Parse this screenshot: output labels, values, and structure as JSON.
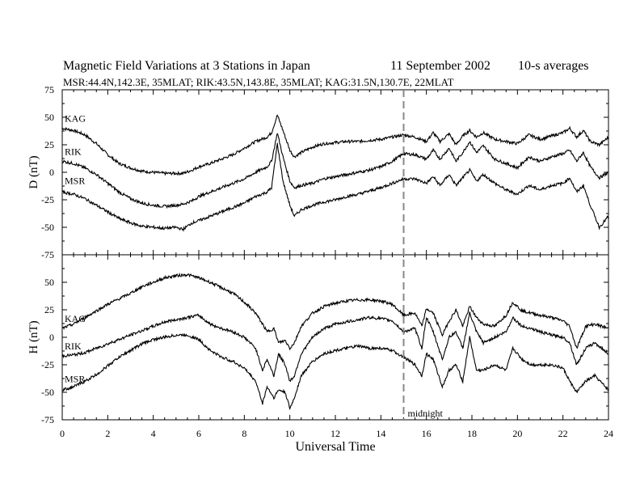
{
  "header": {
    "title": "Magnetic Field Variations at 3 Stations in Japan",
    "date": "11 September 2002",
    "averaging": "10-s averages",
    "stations_line": "MSR:44.4N,142.3E, 35MLAT;   RIK:43.5N,143.8E, 35MLAT;   KAG:31.5N,130.7E, 22MLAT"
  },
  "chart_data": {
    "type": "line",
    "xlabel": "Universal Time",
    "xlim": [
      0,
      24
    ],
    "xticks": [
      0,
      2,
      4,
      6,
      8,
      10,
      12,
      14,
      16,
      18,
      20,
      22,
      24
    ],
    "annotations": [
      {
        "x": 15,
        "style": "dashed-vertical",
        "label": "midnight"
      }
    ],
    "panels": [
      {
        "ylabel": "D (nT)",
        "ylim": [
          -75,
          75
        ],
        "yticks": [
          75,
          50,
          25,
          0,
          -25,
          -50,
          -75
        ],
        "series": [
          {
            "name": "KAG",
            "x": [
              0,
              0.5,
              1,
              1.5,
              2,
              2.5,
              3,
              3.5,
              4,
              4.5,
              5,
              5.3,
              5.7,
              6,
              6.5,
              7,
              7.5,
              8,
              8.5,
              9,
              9.2,
              9.45,
              9.7,
              10,
              10.2,
              10.5,
              11,
              11.5,
              12,
              12.5,
              13,
              13.5,
              14,
              14.5,
              15,
              15.5,
              16,
              16.3,
              16.6,
              17,
              17.3,
              17.6,
              17.9,
              18.2,
              18.5,
              19,
              19.5,
              20,
              20.5,
              21,
              21.5,
              22,
              22.3,
              22.6,
              22.9,
              23.2,
              23.6,
              24
            ],
            "values": [
              40,
              38,
              34,
              26,
              16,
              8,
              4,
              1,
              0,
              -1,
              -1,
              -1,
              2,
              5,
              8,
              12,
              16,
              22,
              28,
              32,
              36,
              52,
              38,
              20,
              14,
              18,
              23,
              26,
              27,
              28,
              28,
              29,
              30,
              32,
              34,
              32,
              28,
              36,
              28,
              35,
              25,
              33,
              38,
              32,
              36,
              30,
              28,
              26,
              34,
              30,
              33,
              36,
              40,
              32,
              38,
              28,
              25,
              32
            ]
          },
          {
            "name": "RIK",
            "x": [
              0,
              0.5,
              1,
              1.5,
              2,
              2.5,
              3,
              3.5,
              4,
              4.5,
              5,
              5.3,
              5.7,
              6,
              6.5,
              7,
              7.5,
              8,
              8.5,
              9,
              9.2,
              9.45,
              9.7,
              10,
              10.2,
              10.5,
              11,
              11.5,
              12,
              12.5,
              13,
              13.5,
              14,
              14.5,
              15,
              15.5,
              16,
              16.3,
              16.6,
              17,
              17.3,
              17.6,
              17.9,
              18.2,
              18.5,
              19,
              19.5,
              20,
              20.5,
              21,
              21.5,
              22,
              22.3,
              22.6,
              22.9,
              23.2,
              23.6,
              24
            ],
            "values": [
              10,
              8,
              4,
              -2,
              -10,
              -18,
              -24,
              -28,
              -30,
              -31,
              -30,
              -29,
              -26,
              -22,
              -18,
              -14,
              -10,
              -6,
              0,
              5,
              10,
              36,
              14,
              -8,
              -14,
              -12,
              -10,
              -6,
              -4,
              -2,
              0,
              2,
              5,
              10,
              17,
              16,
              12,
              20,
              12,
              22,
              10,
              18,
              28,
              18,
              24,
              12,
              8,
              4,
              14,
              10,
              14,
              17,
              20,
              10,
              18,
              5,
              -5,
              0
            ]
          },
          {
            "name": "MSR",
            "x": [
              0,
              0.5,
              1,
              1.5,
              2,
              2.5,
              3,
              3.5,
              4,
              4.5,
              5,
              5.3,
              5.7,
              6,
              6.5,
              7,
              7.5,
              8,
              8.5,
              9,
              9.2,
              9.45,
              9.7,
              10,
              10.2,
              10.5,
              11,
              11.5,
              12,
              12.5,
              13,
              13.5,
              14,
              14.5,
              15,
              15.5,
              16,
              16.3,
              16.6,
              17,
              17.3,
              17.6,
              17.9,
              18.2,
              18.5,
              19,
              19.5,
              20,
              20.5,
              21,
              21.5,
              22,
              22.3,
              22.6,
              22.9,
              23.2,
              23.6,
              24
            ],
            "values": [
              -18,
              -20,
              -24,
              -30,
              -36,
              -42,
              -46,
              -49,
              -50,
              -51,
              -50,
              -52,
              -46,
              -44,
              -40,
              -36,
              -32,
              -28,
              -22,
              -18,
              -14,
              26,
              -8,
              -30,
              -40,
              -34,
              -30,
              -27,
              -25,
              -22,
              -20,
              -17,
              -14,
              -10,
              -6,
              -6,
              -10,
              -4,
              -12,
              -2,
              -12,
              -5,
              2,
              -8,
              -2,
              -10,
              -16,
              -20,
              -12,
              -16,
              -12,
              -10,
              -5,
              -18,
              -12,
              -30,
              -50,
              -40
            ]
          }
        ]
      },
      {
        "ylabel": "H (nT)",
        "ylim": [
          -75,
          75
        ],
        "yticks": [
          50,
          25,
          0,
          -25,
          -50,
          -75
        ],
        "series": [
          {
            "name": "KAG",
            "x": [
              0,
              0.5,
              1,
              1.5,
              2,
              2.5,
              3,
              3.5,
              4,
              4.5,
              5,
              5.5,
              6,
              6.5,
              7,
              7.5,
              8,
              8.5,
              8.8,
              9,
              9.3,
              9.5,
              9.8,
              10,
              10.2,
              10.5,
              11,
              11.5,
              12,
              12.5,
              13,
              13.5,
              14,
              14.5,
              15,
              15.5,
              15.8,
              16,
              16.3,
              16.7,
              17,
              17.3,
              17.6,
              17.9,
              18.2,
              18.5,
              19,
              19.5,
              19.8,
              20.2,
              20.6,
              21,
              21.5,
              22,
              22.3,
              22.6,
              23,
              23.4,
              24
            ],
            "values": [
              8,
              12,
              18,
              24,
              30,
              35,
              40,
              46,
              50,
              54,
              56,
              57,
              54,
              50,
              45,
              40,
              32,
              22,
              12,
              5,
              8,
              -5,
              -3,
              -10,
              -5,
              10,
              22,
              28,
              31,
              33,
              34,
              34,
              33,
              30,
              20,
              22,
              10,
              26,
              22,
              2,
              15,
              25,
              10,
              28,
              18,
              12,
              10,
              20,
              32,
              24,
              22,
              20,
              18,
              15,
              10,
              -10,
              10,
              12,
              8
            ]
          },
          {
            "name": "RIK",
            "x": [
              0,
              0.5,
              1,
              1.5,
              2,
              2.5,
              3,
              3.5,
              4,
              4.5,
              5,
              5.5,
              6,
              6.5,
              7,
              7.5,
              8,
              8.5,
              8.8,
              9,
              9.3,
              9.5,
              9.8,
              10,
              10.2,
              10.5,
              11,
              11.5,
              12,
              12.5,
              13,
              13.5,
              14,
              14.5,
              15,
              15.5,
              15.8,
              16,
              16.3,
              16.7,
              17,
              17.3,
              17.6,
              17.9,
              18.2,
              18.5,
              19,
              19.5,
              19.8,
              20.2,
              20.6,
              21,
              21.5,
              22,
              22.3,
              22.6,
              23,
              23.4,
              24
            ],
            "values": [
              -17,
              -16,
              -14,
              -10,
              -6,
              -2,
              2,
              6,
              10,
              14,
              16,
              18,
              20,
              12,
              8,
              5,
              0,
              -10,
              -30,
              -20,
              -35,
              -15,
              -25,
              -40,
              -35,
              -15,
              0,
              8,
              12,
              14,
              16,
              18,
              17,
              15,
              5,
              8,
              -10,
              18,
              5,
              -20,
              0,
              5,
              -10,
              22,
              5,
              -5,
              0,
              5,
              18,
              10,
              8,
              5,
              2,
              0,
              -5,
              -25,
              -10,
              -5,
              -15
            ]
          },
          {
            "name": "MSR",
            "x": [
              0,
              0.5,
              1,
              1.5,
              2,
              2.5,
              3,
              3.5,
              4,
              4.5,
              5,
              5.5,
              6,
              6.5,
              7,
              7.5,
              8,
              8.5,
              8.8,
              9,
              9.3,
              9.5,
              9.8,
              10,
              10.2,
              10.5,
              11,
              11.5,
              12,
              12.5,
              13,
              13.5,
              14,
              14.5,
              15,
              15.5,
              15.8,
              16,
              16.3,
              16.7,
              17,
              17.3,
              17.6,
              17.9,
              18.2,
              18.5,
              19,
              19.5,
              19.8,
              20.2,
              20.6,
              21,
              21.5,
              22,
              22.3,
              22.6,
              23,
              23.4,
              24
            ],
            "values": [
              -48,
              -45,
              -40,
              -34,
              -26,
              -18,
              -12,
              -6,
              -2,
              0,
              2,
              2,
              -2,
              -12,
              -18,
              -22,
              -28,
              -40,
              -60,
              -45,
              -55,
              -48,
              -50,
              -65,
              -55,
              -35,
              -22,
              -15,
              -12,
              -10,
              -8,
              -10,
              -10,
              -12,
              -18,
              -25,
              -35,
              -15,
              -20,
              -45,
              -30,
              -25,
              -40,
              0,
              -30,
              -30,
              -25,
              -30,
              -10,
              -20,
              -25,
              -25,
              -25,
              -28,
              -40,
              -50,
              -40,
              -35,
              -48
            ]
          }
        ]
      }
    ]
  }
}
